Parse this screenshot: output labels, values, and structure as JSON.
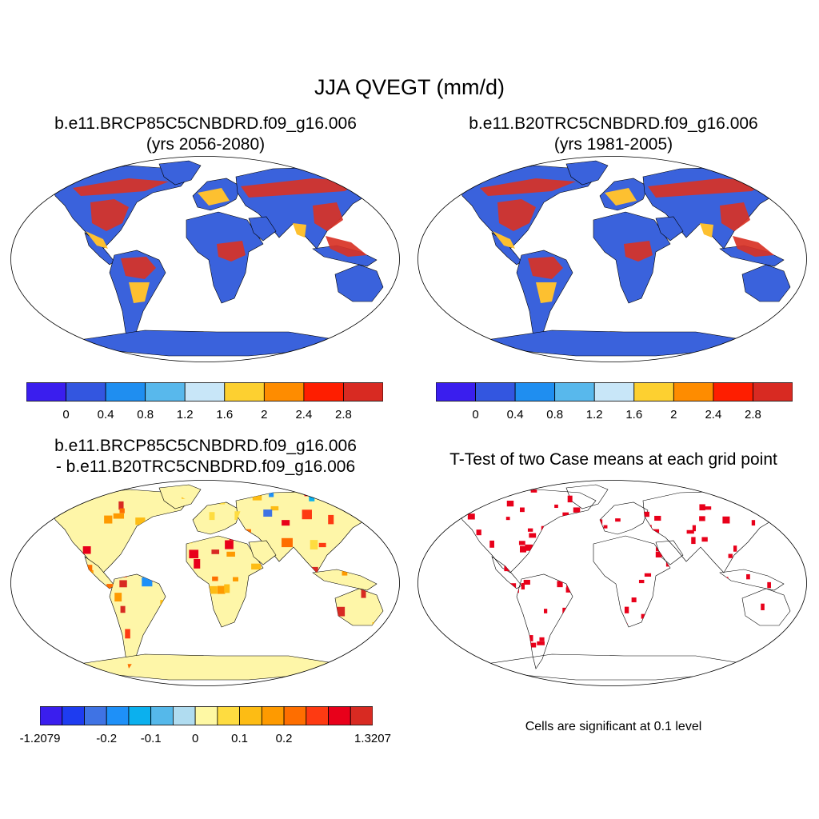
{
  "main_title": "JJA QVEGT (mm/d)",
  "panels": {
    "p1": {
      "title1": "b.e11.BRCP85C5CNBDRD.f09_g16.006",
      "title2": "(yrs 2056-2080)"
    },
    "p2": {
      "title1": "b.e11.B20TRC5CNBDRD.f09_g16.006",
      "title2": "(yrs 1981-2005)"
    },
    "p3": {
      "title1": "b.e11.BRCP85C5CNBDRD.f09_g16.006",
      "title2": "- b.e11.B20TRC5CNBDRD.f09_g16.006"
    },
    "p4": {
      "title1": "T-Test of two Case means at each grid point",
      "note": "Cells are significant at 0.1 level"
    }
  },
  "colorbar_abs": {
    "colors": [
      "#3a1eee",
      "#3356e0",
      "#1f8ef0",
      "#58b8ec",
      "#c8e6f8",
      "#fdd030",
      "#fe8c00",
      "#fe1e00",
      "#d82a22"
    ],
    "tick_labels": [
      "0",
      "0.4",
      "0.8",
      "1.2",
      "1.6",
      "2",
      "2.4",
      "2.8"
    ]
  },
  "colorbar_diff": {
    "colors": [
      "#3a1eee",
      "#1e3cf0",
      "#3f73e4",
      "#1e90f8",
      "#0bb0ee",
      "#55b8ea",
      "#b0dcf0",
      "#fef8a4",
      "#fedc40",
      "#fdbc14",
      "#fe9a00",
      "#fe6e00",
      "#fe3a12",
      "#e8001a",
      "#d82a22"
    ],
    "tick_labels": [
      "-1.2079",
      "-0.2",
      "-0.1",
      "0",
      "0.1",
      "0.2",
      "1.3207"
    ]
  },
  "colors": {
    "ocean": "#ffffff",
    "land_low": "#3a62dc",
    "land_high": "#d83225",
    "diff_base": "#fef6a8",
    "significant": "#e8001a"
  }
}
